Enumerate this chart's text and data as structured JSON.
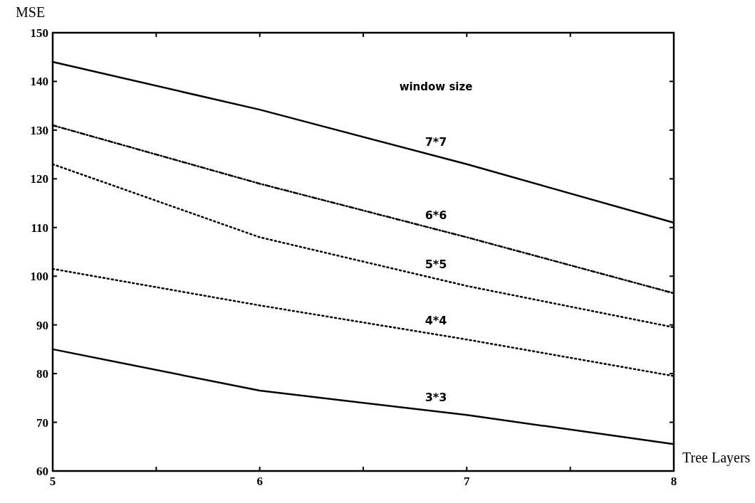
{
  "chart_data": {
    "type": "line",
    "ylabel": "MSE",
    "xlabel": "Tree Layers",
    "legend_title": "window size",
    "x": [
      5,
      6,
      7,
      8
    ],
    "xlim": [
      5,
      8
    ],
    "ylim": [
      60,
      150
    ],
    "xticks": [
      5,
      {
        "value": 5.5,
        "label": null
      },
      6,
      {
        "value": 6.5,
        "label": null
      },
      7,
      {
        "value": 7.5,
        "label": null
      },
      8
    ],
    "yticks": [
      60,
      70,
      80,
      90,
      100,
      110,
      120,
      130,
      140,
      150
    ],
    "marker": "none",
    "series": [
      {
        "name": "7*7",
        "color": "#000000",
        "line_style": "solid",
        "values": [
          144,
          134.2,
          123,
          111
        ]
      },
      {
        "name": "6*6",
        "color": "#000000",
        "line_style": "dashed",
        "values": [
          131,
          119,
          108,
          96.5
        ]
      },
      {
        "name": "5*5",
        "color": "#000000",
        "line_style": "dotted",
        "values": [
          123,
          108,
          98,
          89.5
        ]
      },
      {
        "name": "4*4",
        "color": "#000000",
        "line_style": "dotted",
        "values": [
          101.5,
          94,
          87,
          79.5
        ]
      },
      {
        "name": "3*3",
        "color": "#000000",
        "line_style": "solid",
        "values": [
          85,
          76.5,
          71.5,
          65.5
        ]
      }
    ]
  }
}
